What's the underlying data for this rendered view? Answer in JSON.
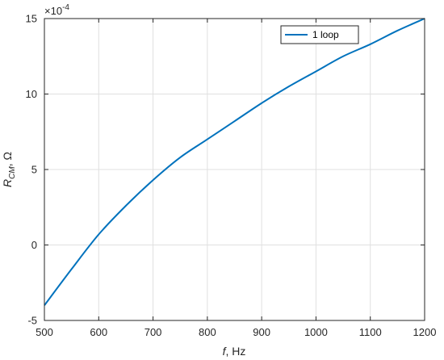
{
  "chart_data": {
    "type": "line",
    "title": "",
    "xlabel": "f, Hz",
    "xlabel_var": "f",
    "xlabel_rest": ", Hz",
    "ylabel_var": "R",
    "ylabel_sub": "CM",
    "ylabel_rest": ", Ω",
    "y_exponent_base": "×10",
    "y_exponent_power": "-4",
    "xlim": [
      500,
      1200
    ],
    "ylim": [
      -5,
      15
    ],
    "xticks": [
      500,
      600,
      700,
      800,
      900,
      1000,
      1100,
      1200
    ],
    "yticks": [
      -5,
      0,
      5,
      10,
      15
    ],
    "grid": true,
    "legend_position": "top-right",
    "series": [
      {
        "name": "1 loop",
        "color": "#0072BD",
        "x": [
          500,
          550,
          600,
          650,
          700,
          750,
          800,
          850,
          900,
          950,
          1000,
          1050,
          1100,
          1150,
          1200
        ],
        "y": [
          -4.0,
          -1.6,
          0.7,
          2.6,
          4.3,
          5.8,
          7.0,
          8.2,
          9.4,
          10.5,
          11.5,
          12.5,
          13.3,
          14.2,
          15.0
        ]
      }
    ]
  }
}
